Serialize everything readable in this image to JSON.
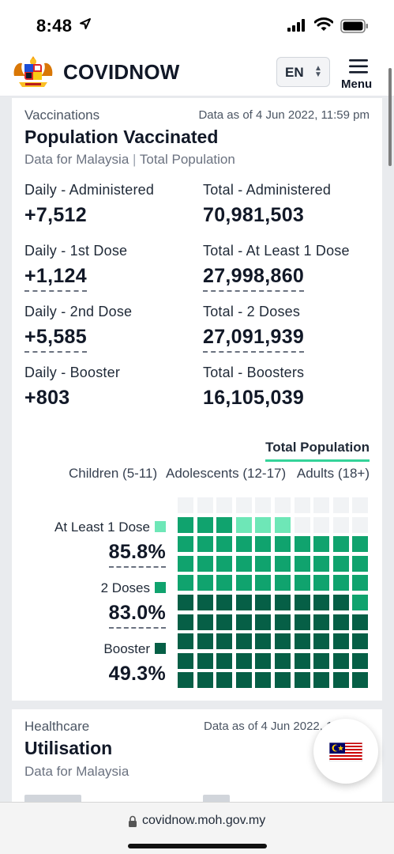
{
  "status_bar": {
    "time": "8:48"
  },
  "header": {
    "brand": "COVIDNOW",
    "language": "EN",
    "menu_label": "Menu"
  },
  "vaccinations": {
    "section_label": "Vaccinations",
    "as_of": "Data as of 4 Jun 2022, 11:59 pm",
    "title": "Population Vaccinated",
    "subtitle_region": "Data for Malaysia",
    "subtitle_population": "Total Population",
    "stats": [
      {
        "label": "Daily - Administered",
        "value": "+7,512"
      },
      {
        "label": "Total - Administered",
        "value": "70,981,503"
      },
      {
        "label": "Daily - 1st Dose",
        "value": "+1,124"
      },
      {
        "label": "Total - At Least 1 Dose",
        "value": "27,998,860"
      },
      {
        "label": "Daily - 2nd Dose",
        "value": "+5,585"
      },
      {
        "label": "Total - 2 Doses",
        "value": "27,091,939"
      },
      {
        "label": "Daily - Booster",
        "value": "+803"
      },
      {
        "label": "Total - Boosters",
        "value": "16,105,039"
      }
    ],
    "population_tab": "Total Population",
    "age_groups": [
      "Children (5-11)",
      "Adolescents (12-17)",
      "Adults (18+)"
    ],
    "legend": [
      {
        "label": "At Least 1 Dose",
        "value": "85.8%",
        "pct": 85.8,
        "color": "#6ee7b7"
      },
      {
        "label": "2 Doses",
        "value": "83.0%",
        "pct": 83.0,
        "color": "#10a36e"
      },
      {
        "label": "Booster",
        "value": "49.3%",
        "pct": 49.3,
        "color": "#065f46"
      }
    ],
    "empty_color": "#f1f3f5"
  },
  "healthcare": {
    "section_label": "Healthcare",
    "as_of": "Data as of 4 Jun 2022, 1",
    "title": "Utilisation",
    "subtitle": "Data for Malaysia"
  },
  "browser": {
    "url": "covidnow.moh.gov.my"
  }
}
